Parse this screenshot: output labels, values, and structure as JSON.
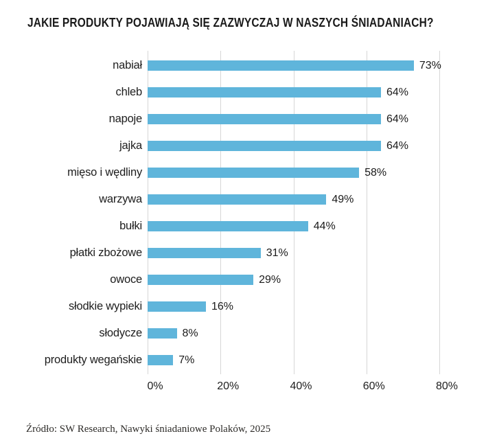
{
  "page": {
    "background_color": "#FFFFFF"
  },
  "chart_data": {
    "type": "bar",
    "orientation": "horizontal",
    "title": "JAKIE PRODUKTY POJAWIAJĄ SIĘ ZAZWYCZAJ W NASZYCH ŚNIADANIACH?",
    "categories": [
      "nabiał",
      "chleb",
      "napoje",
      "jajka",
      "mięso i wędliny",
      "warzywa",
      "bułki",
      "płatki zbożowe",
      "owoce",
      "słodkie wypieki",
      "słodycze",
      "produkty wegańskie"
    ],
    "values": [
      73,
      64,
      64,
      64,
      58,
      49,
      44,
      31,
      29,
      16,
      8,
      7
    ],
    "value_labels": [
      "73%",
      "64%",
      "64%",
      "64%",
      "58%",
      "49%",
      "44%",
      "31%",
      "29%",
      "16%",
      "8%",
      "7%"
    ],
    "xlabel": "",
    "ylabel": "",
    "xlim": [
      0,
      80
    ],
    "x_tick_values": [
      0,
      20,
      40,
      60,
      80
    ],
    "x_tick_labels": [
      "0%",
      "20%",
      "40%",
      "60%",
      "80%"
    ],
    "grid": "vertical-on",
    "legend": "none",
    "bar_color": "#5FB5DB",
    "gridline_color": "#D6D6D6",
    "text_color": "#1D1D1D",
    "source": "Źródło: SW Research, Nawyki śniadaniowe Polaków, 2025"
  }
}
